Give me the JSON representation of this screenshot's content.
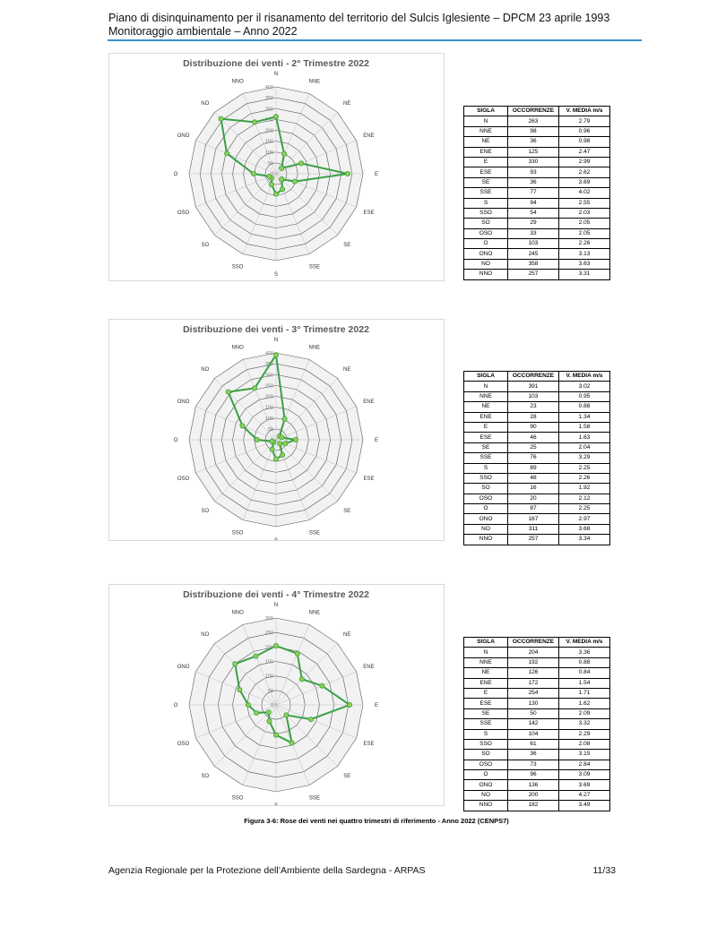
{
  "header": {
    "line1": "Piano di disinquinamento per il risanamento del territorio del Sulcis Iglesiente – DPCM 23 aprile 1993",
    "line2": "Monitoraggio ambientale – Anno 2022"
  },
  "chart_data": [
    {
      "type": "radar",
      "title": "Distribuzione dei venti - 2° Trimestre 2022",
      "categories": [
        "N",
        "NNE",
        "NE",
        "ENE",
        "E",
        "ESE",
        "SE",
        "SSE",
        "S",
        "SSO",
        "SO",
        "OSO",
        "O",
        "ONO",
        "NO",
        "NNO"
      ],
      "series": [
        {
          "color": "#3aa047",
          "values": [
            263,
            98,
            36,
            125,
            330,
            93,
            36,
            77,
            94,
            54,
            29,
            33,
            103,
            245,
            358,
            257
          ]
        }
      ],
      "rlim": [
        0,
        400
      ],
      "rticks": [
        0,
        50,
        100,
        150,
        200,
        250,
        300,
        350,
        400
      ]
    },
    {
      "type": "radar",
      "title": "Distribuzione dei venti - 3° Trimestre 2022",
      "categories": [
        "N",
        "NNE",
        "NE",
        "ENE",
        "E",
        "ESE",
        "SE",
        "SSE",
        "S",
        "SSO",
        "SO",
        "OSO",
        "O",
        "ONO",
        "NO",
        "NNO"
      ],
      "series": [
        {
          "color": "#3aa047",
          "values": [
            391,
            103,
            23,
            28,
            90,
            46,
            25,
            76,
            89,
            48,
            16,
            20,
            87,
            167,
            311,
            257
          ]
        }
      ],
      "rlim": [
        0,
        400
      ],
      "rticks": [
        0,
        50,
        100,
        150,
        200,
        250,
        300,
        350,
        400
      ]
    },
    {
      "type": "radar",
      "title": "Distribuzione dei venti - 4° Trimestre 2022",
      "categories": [
        "N",
        "NNE",
        "NE",
        "ENE",
        "E",
        "ESE",
        "SE",
        "SSE",
        "S",
        "SSO",
        "SO",
        "OSO",
        "O",
        "ONO",
        "NO",
        "NNO"
      ],
      "series": [
        {
          "color": "#3aa047",
          "values": [
            204,
            192,
            126,
            172,
            254,
            130,
            50,
            142,
            104,
            61,
            36,
            73,
            96,
            136,
            200,
            182
          ]
        }
      ],
      "rlim": [
        0,
        300
      ],
      "rticks": [
        0,
        50,
        100,
        150,
        200,
        250,
        300
      ]
    }
  ],
  "tables": [
    {
      "columns": [
        "SIGLA",
        "OCCORRENZE",
        "V. MEDIA m/s"
      ],
      "v_media": [
        2.79,
        0.96,
        0.98,
        2.47,
        2.99,
        2.62,
        3.69,
        4.02,
        2.55,
        2.03,
        2.05,
        2.05,
        2.26,
        3.13,
        3.63,
        3.31
      ]
    },
    {
      "columns": [
        "SIGLA",
        "OCCORRENZE",
        "V. MEDIA m/s"
      ],
      "v_media": [
        3.02,
        0.95,
        0.88,
        1.34,
        1.58,
        1.63,
        2.04,
        3.29,
        2.25,
        2.26,
        1.92,
        2.12,
        2.25,
        2.97,
        3.68,
        3.34
      ]
    },
    {
      "columns": [
        "SIGLA",
        "OCCORRENZE",
        "V. MEDIA m/s"
      ],
      "v_media": [
        3.36,
        0.88,
        0.84,
        1.54,
        1.71,
        1.62,
        2.09,
        3.32,
        2.29,
        2.08,
        3.15,
        2.84,
        3.09,
        3.69,
        4.27,
        3.49
      ]
    }
  ],
  "caption": "Figura 3-6: Rose dei venti nei quattro trimestri di riferimento - Anno 2022 (CENPS7)",
  "footer": {
    "text": "Agenzia Regionale per la Protezione dell’Ambiente della Sardegna - ARPAS",
    "page": "11/33"
  }
}
